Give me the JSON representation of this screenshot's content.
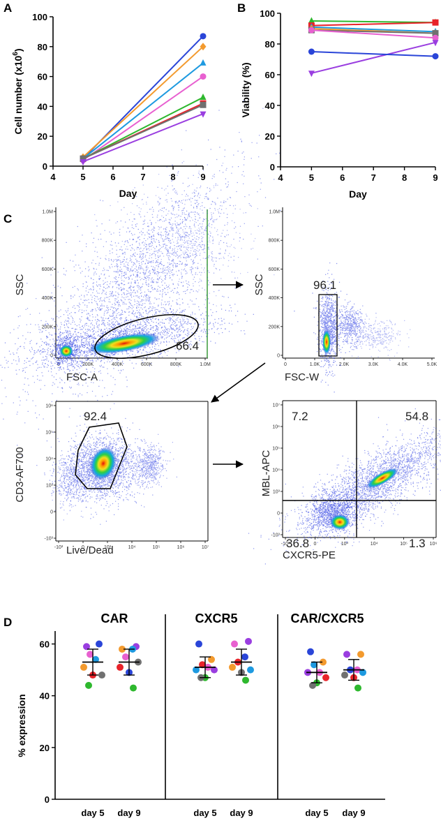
{
  "panel_labels": {
    "a": "A",
    "b": "B",
    "c": "C",
    "d": "D"
  },
  "colors": [
    "#2a45d8",
    "#f39a2e",
    "#1e9ae0",
    "#e860d0",
    "#2eb82e",
    "#e8232a",
    "#707070",
    "#9a3ee0"
  ],
  "chart_data": [
    {
      "id": "A",
      "type": "line",
      "xlabel": "Day",
      "ylabel": "Cell number (x10^6)",
      "xlim": [
        4,
        9
      ],
      "ylim": [
        0,
        100
      ],
      "xticks": [
        "4",
        "5",
        "6",
        "7",
        "8",
        "9"
      ],
      "yticks": [
        "0",
        "20",
        "40",
        "60",
        "80",
        "100"
      ],
      "x": [
        5,
        9
      ],
      "series": [
        {
          "color": "#2a45d8",
          "marker": "circle",
          "values": [
            5,
            87
          ]
        },
        {
          "color": "#f39a2e",
          "marker": "diamond",
          "values": [
            6,
            80
          ]
        },
        {
          "color": "#1e9ae0",
          "marker": "triangle",
          "values": [
            5,
            69
          ]
        },
        {
          "color": "#e860d0",
          "marker": "circle",
          "values": [
            4,
            60
          ]
        },
        {
          "color": "#2eb82e",
          "marker": "triangle",
          "values": [
            5,
            46
          ]
        },
        {
          "color": "#e8232a",
          "marker": "square",
          "values": [
            5,
            42
          ]
        },
        {
          "color": "#707070",
          "marker": "square",
          "values": [
            5,
            41
          ]
        },
        {
          "color": "#9a3ee0",
          "marker": "triangle-down",
          "values": [
            3,
            35
          ]
        }
      ]
    },
    {
      "id": "B",
      "type": "line",
      "xlabel": "Day",
      "ylabel": "Viability (%)",
      "xlim": [
        4,
        9
      ],
      "ylim": [
        0,
        100
      ],
      "xticks": [
        "4",
        "5",
        "6",
        "7",
        "8",
        "9"
      ],
      "yticks": [
        "0",
        "20",
        "40",
        "60",
        "80",
        "100"
      ],
      "x": [
        5,
        9
      ],
      "series": [
        {
          "color": "#2eb82e",
          "marker": "triangle",
          "values": [
            95,
            94
          ]
        },
        {
          "color": "#e8232a",
          "marker": "square",
          "values": [
            92,
            94
          ]
        },
        {
          "color": "#1e9ae0",
          "marker": "triangle",
          "values": [
            91,
            88
          ]
        },
        {
          "color": "#f39a2e",
          "marker": "diamond",
          "values": [
            90,
            87
          ]
        },
        {
          "color": "#707070",
          "marker": "square",
          "values": [
            89,
            87
          ]
        },
        {
          "color": "#e860d0",
          "marker": "circle",
          "values": [
            89,
            84
          ]
        },
        {
          "color": "#9a3ee0",
          "marker": "triangle-down",
          "values": [
            61,
            81
          ]
        },
        {
          "color": "#2a45d8",
          "marker": "circle",
          "values": [
            75,
            72
          ]
        }
      ]
    },
    {
      "id": "D",
      "type": "scatter",
      "ylabel": "% expression",
      "ylim": [
        0,
        65
      ],
      "yticks": [
        "0",
        "20",
        "40",
        "60"
      ],
      "groups": [
        {
          "title": "CAR",
          "categories": [
            "day 5",
            "day 9"
          ],
          "points": [
            [
              {
                "c": "#9a3ee0",
                "v": 59
              },
              {
                "c": "#2a45d8",
                "v": 60
              },
              {
                "c": "#e860d0",
                "v": 56
              },
              {
                "c": "#1e9ae0",
                "v": 54
              },
              {
                "c": "#f39a2e",
                "v": 51
              },
              {
                "c": "#707070",
                "v": 48
              },
              {
                "c": "#e8232a",
                "v": 48
              },
              {
                "c": "#2eb82e",
                "v": 44
              }
            ],
            [
              {
                "c": "#9a3ee0",
                "v": 59
              },
              {
                "c": "#f39a2e",
                "v": 58
              },
              {
                "c": "#1e9ae0",
                "v": 58
              },
              {
                "c": "#e860d0",
                "v": 55
              },
              {
                "c": "#707070",
                "v": 53
              },
              {
                "c": "#e8232a",
                "v": 51
              },
              {
                "c": "#2a45d8",
                "v": 49
              },
              {
                "c": "#2eb82e",
                "v": 43
              }
            ]
          ],
          "mean": [
            53,
            53
          ],
          "sd": [
            5,
            5
          ]
        },
        {
          "title": "CXCR5",
          "categories": [
            "day 5",
            "day 9"
          ],
          "points": [
            [
              {
                "c": "#2a45d8",
                "v": 60
              },
              {
                "c": "#f39a2e",
                "v": 54
              },
              {
                "c": "#e8232a",
                "v": 52
              },
              {
                "c": "#e860d0",
                "v": 51
              },
              {
                "c": "#1e9ae0",
                "v": 50
              },
              {
                "c": "#9a3ee0",
                "v": 50
              },
              {
                "c": "#2eb82e",
                "v": 47
              },
              {
                "c": "#707070",
                "v": 47
              }
            ],
            [
              {
                "c": "#9a3ee0",
                "v": 61
              },
              {
                "c": "#e860d0",
                "v": 60
              },
              {
                "c": "#2a45d8",
                "v": 55
              },
              {
                "c": "#e8232a",
                "v": 53
              },
              {
                "c": "#1e9ae0",
                "v": 50
              },
              {
                "c": "#f39a2e",
                "v": 51
              },
              {
                "c": "#707070",
                "v": 49
              },
              {
                "c": "#2eb82e",
                "v": 46
              }
            ]
          ],
          "mean": [
            51,
            53
          ],
          "sd": [
            4,
            5
          ]
        },
        {
          "title": "CAR/CXCR5",
          "categories": [
            "day 5",
            "day 9"
          ],
          "points": [
            [
              {
                "c": "#2a45d8",
                "v": 57
              },
              {
                "c": "#f39a2e",
                "v": 53
              },
              {
                "c": "#1e9ae0",
                "v": 52
              },
              {
                "c": "#e860d0",
                "v": 49
              },
              {
                "c": "#9a3ee0",
                "v": 49
              },
              {
                "c": "#e8232a",
                "v": 47
              },
              {
                "c": "#2eb82e",
                "v": 45
              },
              {
                "c": "#707070",
                "v": 44
              }
            ],
            [
              {
                "c": "#f39a2e",
                "v": 56
              },
              {
                "c": "#9a3ee0",
                "v": 56
              },
              {
                "c": "#e860d0",
                "v": 50
              },
              {
                "c": "#2a45d8",
                "v": 50
              },
              {
                "c": "#1e9ae0",
                "v": 49
              },
              {
                "c": "#707070",
                "v": 48
              },
              {
                "c": "#e8232a",
                "v": 47
              },
              {
                "c": "#2eb82e",
                "v": 43
              }
            ]
          ],
          "mean": [
            49,
            50
          ],
          "sd": [
            4,
            4
          ]
        }
      ]
    }
  ],
  "flow": {
    "p1": {
      "ylabel": "SSC",
      "xlabel": "FSC-A",
      "gate": "66.4",
      "xticks": [
        "0",
        "200K",
        "400K",
        "600K",
        "800K",
        "1.0M"
      ],
      "yticks": [
        "0",
        "200K",
        "400K",
        "600K",
        "800K",
        "1.0M"
      ]
    },
    "p2": {
      "ylabel": "SSC",
      "xlabel": "FSC-W",
      "gate": "96.1",
      "xticks": [
        "0",
        "1.0K",
        "2.0K",
        "3.0K",
        "4.0K",
        "5.0K"
      ],
      "yticks": [
        "0",
        "200K",
        "400K",
        "600K",
        "800K",
        "1.0M"
      ]
    },
    "p3": {
      "ylabel": "CD3-AF700",
      "xlabel": "Live/Dead",
      "gate": "92.4",
      "xticks": [
        "-10³",
        "0",
        "10³",
        "10⁴",
        "10⁵",
        "10⁶",
        "10⁷"
      ],
      "yticks": [
        "-10³",
        "0",
        "10³",
        "10⁴",
        "10⁵",
        "10⁶"
      ]
    },
    "p4": {
      "ylabel": "MBL-APC",
      "xlabel": "CXCR5-PE",
      "q_ul": "7.2",
      "q_ur": "54.8",
      "q_ll": "36.8",
      "q_lr": "1.3",
      "xticks": [
        "-10³",
        "0",
        "10³",
        "10⁴",
        "10⁵",
        "10⁶"
      ],
      "yticks": [
        "-10³",
        "0",
        "10³",
        "10⁴",
        "10⁵",
        "10⁶",
        "10⁷"
      ]
    }
  }
}
